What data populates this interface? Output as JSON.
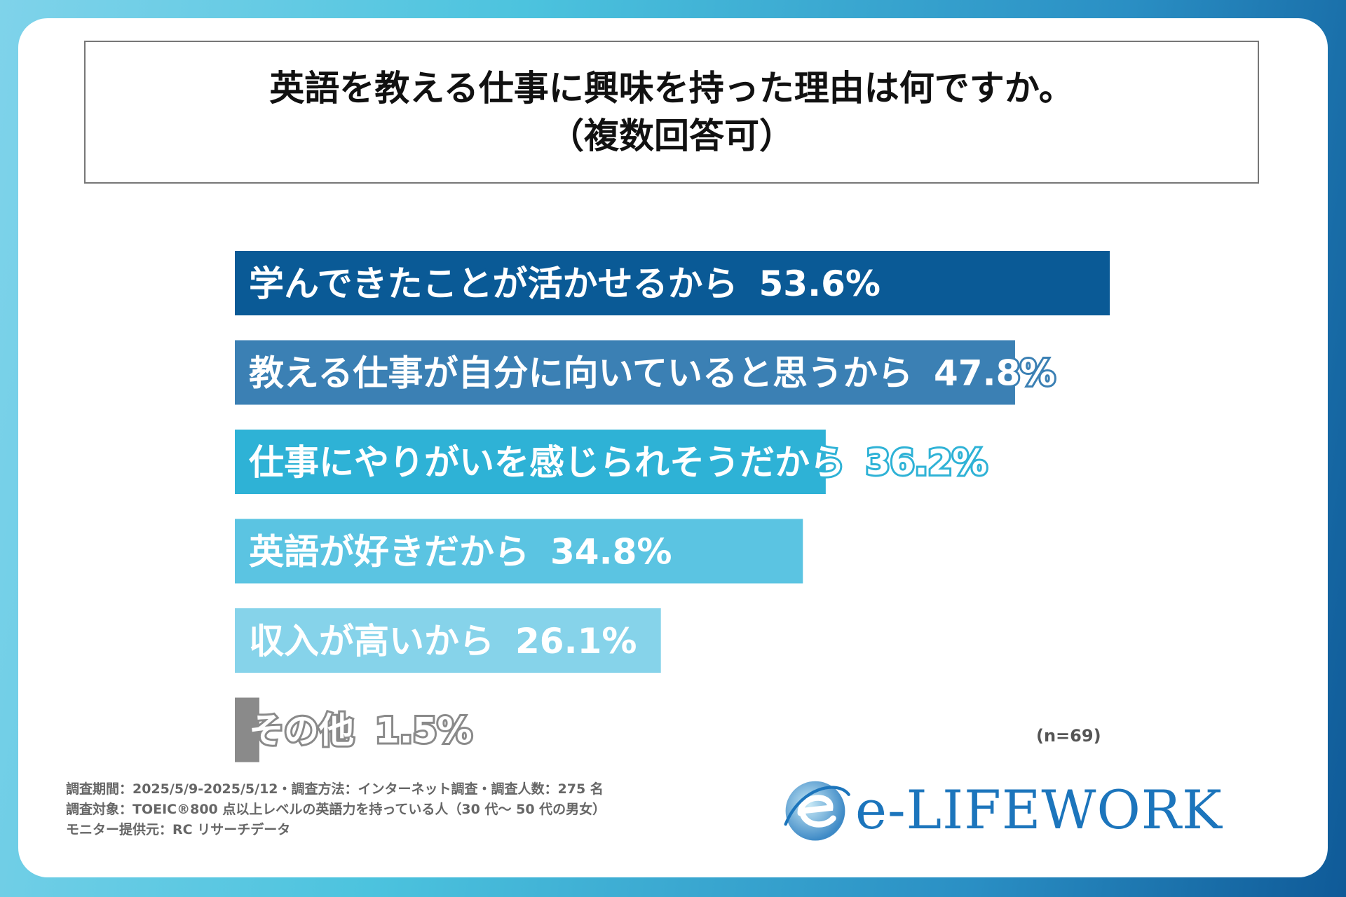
{
  "title": {
    "line1": "英語を教える仕事に興味を持った理由は何ですか。",
    "line2": "（複数回答可）"
  },
  "chart_data": {
    "type": "bar",
    "orientation": "horizontal",
    "categories": [
      "学んできたことが活かせるから",
      "教える仕事が自分に向いていると思うから",
      "仕事にやりがいを感じられそうだから",
      "英語が好きだから",
      "収入が高いから",
      "その他"
    ],
    "values": [
      53.6,
      47.8,
      36.2,
      34.8,
      26.1,
      1.5
    ],
    "value_labels": [
      "53.6%",
      "47.8%",
      "36.2%",
      "34.8%",
      "26.1%",
      "1.5%"
    ],
    "colors": [
      "#0a5a96",
      "#3b80b4",
      "#2eb2d6",
      "#5bc4e2",
      "#86d3ea",
      "#8a8a8a"
    ],
    "xlim": [
      0,
      60
    ]
  },
  "sample_size": "(n=69)",
  "footnotes": [
    "調査期間：2025/5/9-2025/5/12・調査方法：インターネット調査・調査人数：275 名",
    "調査対象：TOEIC®800 点以上レベルの英語力を持っている人（30 代～ 50 代の男女）",
    "モニター提供元：RC リサーチデータ"
  ],
  "logo": {
    "text": "e-LIFEWORK",
    "icon": "e-swoosh-logo-icon"
  }
}
